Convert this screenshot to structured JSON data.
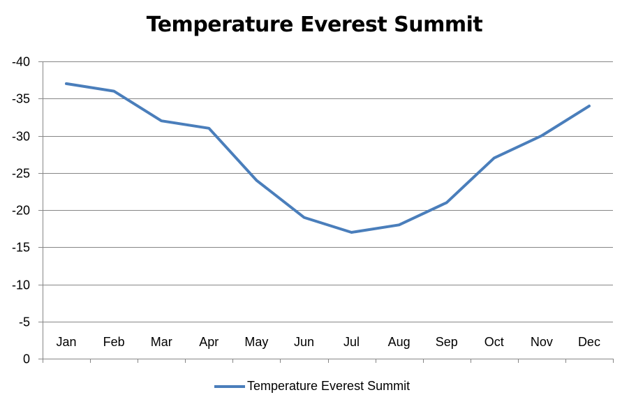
{
  "chart_data": {
    "type": "line",
    "title": "Temperature Everest Summit",
    "categories": [
      "Jan",
      "Feb",
      "Mar",
      "Apr",
      "May",
      "Jun",
      "Jul",
      "Aug",
      "Sep",
      "Oct",
      "Nov",
      "Dec"
    ],
    "series": [
      {
        "name": "Temperature Everest Summit",
        "values": [
          -37,
          -36,
          -32,
          -31,
          -24,
          -19,
          -17,
          -18,
          -21,
          -27,
          -30,
          -34
        ],
        "color": "#4A7EBB"
      }
    ],
    "ylim": [
      0,
      -40
    ],
    "y_axis_reversed": true,
    "y_ticks": [
      0,
      -5,
      -10,
      -15,
      -20,
      -25,
      -30,
      -35,
      -40
    ],
    "y_tick_labels": [
      "0",
      "-5",
      "-10",
      "-15",
      "-20",
      "-25",
      "-30",
      "-35",
      "-40"
    ],
    "grid": true,
    "legend_position": "bottom",
    "xlabel": "",
    "ylabel": ""
  }
}
